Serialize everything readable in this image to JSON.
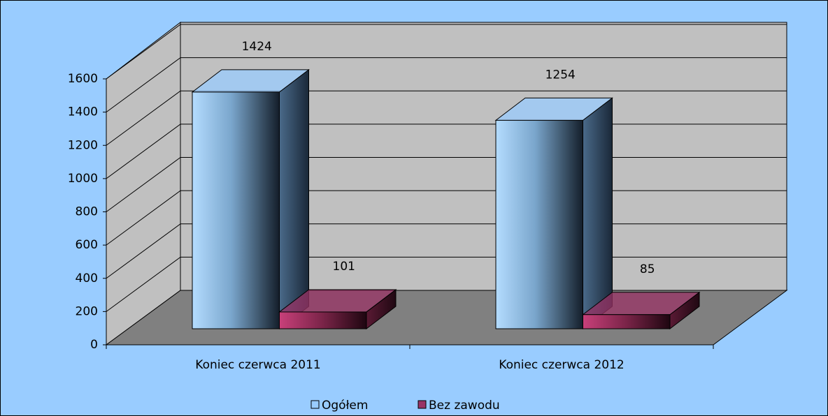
{
  "chart_data": {
    "type": "bar3d",
    "categories": [
      "Koniec czerwca 2011",
      "Koniec czerwca 2012"
    ],
    "series": [
      {
        "name": "Ogółem",
        "color": "#99ccff",
        "values": [
          1424,
          1254
        ]
      },
      {
        "name": "Bez zawodu",
        "color": "#993366",
        "values": [
          101,
          85
        ]
      }
    ],
    "ylim": [
      0,
      1600
    ],
    "yticks": [
      0,
      200,
      400,
      600,
      800,
      1000,
      1200,
      1400,
      1600
    ],
    "grid": true,
    "legend": "bottom"
  }
}
